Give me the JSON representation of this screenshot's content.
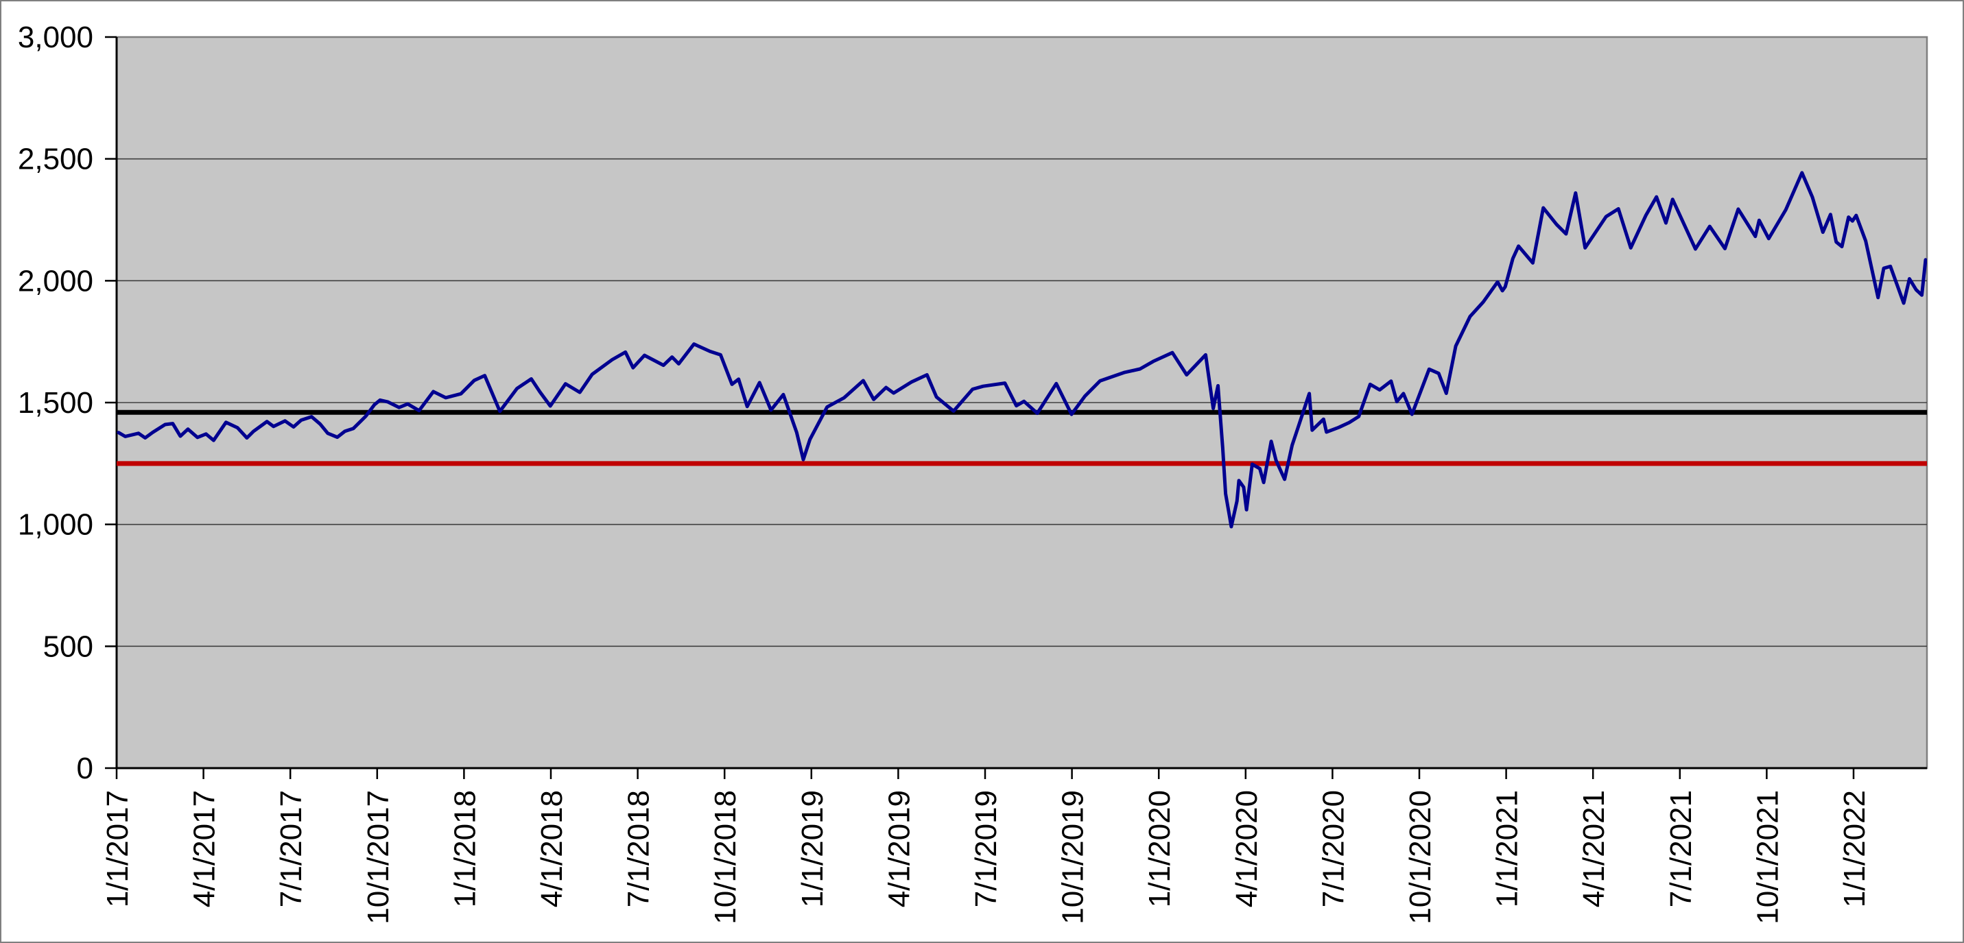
{
  "window": {
    "background": "#ffffff",
    "border_color": "#7f7f7f"
  },
  "chart_data": {
    "type": "line",
    "title": "",
    "legend": "none",
    "plot": {
      "background": "#c6c6c6",
      "border_color": "#7f7f7f",
      "gridline_color": "#404040",
      "axis_color": "#000000",
      "grid": true
    },
    "y_axis": {
      "min": 0,
      "max": 3000,
      "tick_interval": 500,
      "tick_labels": [
        "0",
        "500",
        "1,000",
        "1,500",
        "2,000",
        "2,500",
        "3,000"
      ]
    },
    "x_axis": {
      "start": "1/1/2017",
      "end": "3/18/2022",
      "label_rotation": -90,
      "tick_labels": [
        "1/1/2017",
        "4/1/2017",
        "7/1/2017",
        "10/1/2017",
        "1/1/2018",
        "4/1/2018",
        "7/1/2018",
        "10/1/2018",
        "1/1/2019",
        "4/1/2019",
        "7/1/2019",
        "10/1/2019",
        "1/1/2020",
        "4/1/2020",
        "7/1/2020",
        "10/1/2020",
        "1/1/2021",
        "4/1/2021",
        "7/1/2021",
        "10/1/2021",
        "1/1/2022"
      ]
    },
    "reference_lines": [
      {
        "name": "black-reference-line",
        "value": 1460,
        "color": "#000000",
        "width": 7
      },
      {
        "name": "red-reference-line",
        "value": 1250,
        "color": "#c00000",
        "width": 7
      }
    ],
    "series": [
      {
        "name": "daily-index-close",
        "color": "#000090",
        "width": 5,
        "points": [
          [
            "1/3/2017",
            1377
          ],
          [
            "1/10/2017",
            1361
          ],
          [
            "1/24/2017",
            1374
          ],
          [
            "1/31/2017",
            1355
          ],
          [
            "2/8/2017",
            1378
          ],
          [
            "2/21/2017",
            1410
          ],
          [
            "3/1/2017",
            1414
          ],
          [
            "3/9/2017",
            1362
          ],
          [
            "3/17/2017",
            1391
          ],
          [
            "3/27/2017",
            1357
          ],
          [
            "4/5/2017",
            1371
          ],
          [
            "4/13/2017",
            1345
          ],
          [
            "4/26/2017",
            1419
          ],
          [
            "5/8/2017",
            1397
          ],
          [
            "5/18/2017",
            1355
          ],
          [
            "5/25/2017",
            1382
          ],
          [
            "6/2/2017",
            1405
          ],
          [
            "6/8/2017",
            1422
          ],
          [
            "6/15/2017",
            1402
          ],
          [
            "6/27/2017",
            1425
          ],
          [
            "7/6/2017",
            1400
          ],
          [
            "7/14/2017",
            1428
          ],
          [
            "7/25/2017",
            1442
          ],
          [
            "8/3/2017",
            1412
          ],
          [
            "8/11/2017",
            1374
          ],
          [
            "8/21/2017",
            1358
          ],
          [
            "8/29/2017",
            1382
          ],
          [
            "9/7/2017",
            1394
          ],
          [
            "9/20/2017",
            1444
          ],
          [
            "9/29/2017",
            1491
          ],
          [
            "10/5/2017",
            1510
          ],
          [
            "10/13/2017",
            1503
          ],
          [
            "10/25/2017",
            1480
          ],
          [
            "11/3/2017",
            1494
          ],
          [
            "11/15/2017",
            1467
          ],
          [
            "11/30/2017",
            1545
          ],
          [
            "12/13/2017",
            1520
          ],
          [
            "12/29/2017",
            1536
          ],
          [
            "1/12/2018",
            1591
          ],
          [
            "1/23/2018",
            1611
          ],
          [
            "2/8/2018",
            1464
          ],
          [
            "2/26/2018",
            1558
          ],
          [
            "3/13/2018",
            1597
          ],
          [
            "3/22/2018",
            1544
          ],
          [
            "4/2/2018",
            1486
          ],
          [
            "4/18/2018",
            1577
          ],
          [
            "5/3/2018",
            1542
          ],
          [
            "5/16/2018",
            1616
          ],
          [
            "6/6/2018",
            1676
          ],
          [
            "6/20/2018",
            1707
          ],
          [
            "6/28/2018",
            1643
          ],
          [
            "7/10/2018",
            1694
          ],
          [
            "7/30/2018",
            1653
          ],
          [
            "8/8/2018",
            1687
          ],
          [
            "8/15/2018",
            1659
          ],
          [
            "8/31/2018",
            1740
          ],
          [
            "9/17/2018",
            1710
          ],
          [
            "9/28/2018",
            1696
          ],
          [
            "10/10/2018",
            1575
          ],
          [
            "10/17/2018",
            1596
          ],
          [
            "10/26/2018",
            1484
          ],
          [
            "11/8/2018",
            1582
          ],
          [
            "11/20/2018",
            1469
          ],
          [
            "12/3/2018",
            1533
          ],
          [
            "12/17/2018",
            1378
          ],
          [
            "12/24/2018",
            1266
          ],
          [
            "12/31/2018",
            1349
          ],
          [
            "1/18/2019",
            1482
          ],
          [
            "2/5/2019",
            1520
          ],
          [
            "2/25/2019",
            1590
          ],
          [
            "3/8/2019",
            1513
          ],
          [
            "3/21/2019",
            1562
          ],
          [
            "3/29/2019",
            1539
          ],
          [
            "4/17/2019",
            1585
          ],
          [
            "5/3/2019",
            1614
          ],
          [
            "5/13/2019",
            1523
          ],
          [
            "5/31/2019",
            1465
          ],
          [
            "6/20/2019",
            1555
          ],
          [
            "7/1/2019",
            1567
          ],
          [
            "7/24/2019",
            1580
          ],
          [
            "8/5/2019",
            1487
          ],
          [
            "8/13/2019",
            1505
          ],
          [
            "8/27/2019",
            1456
          ],
          [
            "9/16/2019",
            1578
          ],
          [
            "10/2/2019",
            1452
          ],
          [
            "10/16/2019",
            1526
          ],
          [
            "11/1/2019",
            1589
          ],
          [
            "11/27/2019",
            1624
          ],
          [
            "12/13/2019",
            1638
          ],
          [
            "12/27/2019",
            1669
          ],
          [
            "1/16/2020",
            1705
          ],
          [
            "1/31/2020",
            1614
          ],
          [
            "2/20/2020",
            1696
          ],
          [
            "2/28/2020",
            1476
          ],
          [
            "3/4/2020",
            1569
          ],
          [
            "3/9/2020",
            1313
          ],
          [
            "3/12/2020",
            1126
          ],
          [
            "3/16/2020",
            1037
          ],
          [
            "3/18/2020",
            991
          ],
          [
            "3/24/2020",
            1096
          ],
          [
            "3/26/2020",
            1180
          ],
          [
            "3/31/2020",
            1153
          ],
          [
            "4/3/2020",
            1060
          ],
          [
            "4/9/2020",
            1247
          ],
          [
            "4/17/2020",
            1229
          ],
          [
            "4/21/2020",
            1172
          ],
          [
            "4/29/2020",
            1341
          ],
          [
            "5/4/2020",
            1263
          ],
          [
            "5/13/2020",
            1185
          ],
          [
            "5/21/2020",
            1325
          ],
          [
            "5/27/2020",
            1396
          ],
          [
            "6/8/2020",
            1537
          ],
          [
            "6/11/2020",
            1387
          ],
          [
            "6/23/2020",
            1432
          ],
          [
            "6/26/2020",
            1379
          ],
          [
            "7/9/2020",
            1398
          ],
          [
            "7/20/2020",
            1418
          ],
          [
            "7/30/2020",
            1443
          ],
          [
            "8/11/2020",
            1575
          ],
          [
            "8/21/2020",
            1552
          ],
          [
            "9/2/2020",
            1588
          ],
          [
            "9/8/2020",
            1504
          ],
          [
            "9/15/2020",
            1537
          ],
          [
            "9/24/2020",
            1452
          ],
          [
            "10/12/2020",
            1637
          ],
          [
            "10/22/2020",
            1620
          ],
          [
            "10/30/2020",
            1538
          ],
          [
            "11/9/2020",
            1732
          ],
          [
            "11/24/2020",
            1853
          ],
          [
            "12/8/2020",
            1913
          ],
          [
            "12/23/2020",
            1995
          ],
          [
            "12/28/2020",
            1959
          ],
          [
            "12/31/2020",
            1975
          ],
          [
            "1/8/2021",
            2091
          ],
          [
            "1/14/2021",
            2142
          ],
          [
            "1/29/2021",
            2073
          ],
          [
            "2/9/2021",
            2299
          ],
          [
            "2/23/2021",
            2231
          ],
          [
            "3/5/2021",
            2192
          ],
          [
            "3/15/2021",
            2360
          ],
          [
            "3/25/2021",
            2135
          ],
          [
            "4/16/2021",
            2263
          ],
          [
            "4/29/2021",
            2295
          ],
          [
            "5/12/2021",
            2135
          ],
          [
            "5/28/2021",
            2269
          ],
          [
            "6/8/2021",
            2344
          ],
          [
            "6/18/2021",
            2237
          ],
          [
            "6/25/2021",
            2334
          ],
          [
            "7/19/2021",
            2130
          ],
          [
            "8/3/2021",
            2223
          ],
          [
            "8/19/2021",
            2132
          ],
          [
            "9/2/2021",
            2294
          ],
          [
            "9/20/2021",
            2182
          ],
          [
            "9/24/2021",
            2248
          ],
          [
            "10/4/2021",
            2173
          ],
          [
            "10/22/2021",
            2291
          ],
          [
            "11/8/2021",
            2443
          ],
          [
            "11/19/2021",
            2343
          ],
          [
            "11/30/2021",
            2199
          ],
          [
            "12/8/2021",
            2272
          ],
          [
            "12/14/2021",
            2159
          ],
          [
            "12/20/2021",
            2140
          ],
          [
            "12/27/2021",
            2261
          ],
          [
            "12/31/2021",
            2245
          ],
          [
            "1/4/2022",
            2268
          ],
          [
            "1/14/2022",
            2163
          ],
          [
            "1/27/2022",
            1931
          ],
          [
            "2/2/2022",
            2051
          ],
          [
            "2/9/2022",
            2059
          ],
          [
            "2/23/2022",
            1908
          ],
          [
            "3/1/2022",
            2008
          ],
          [
            "3/8/2022",
            1963
          ],
          [
            "3/14/2022",
            1941
          ],
          [
            "3/18/2022",
            2086
          ]
        ]
      }
    ]
  }
}
